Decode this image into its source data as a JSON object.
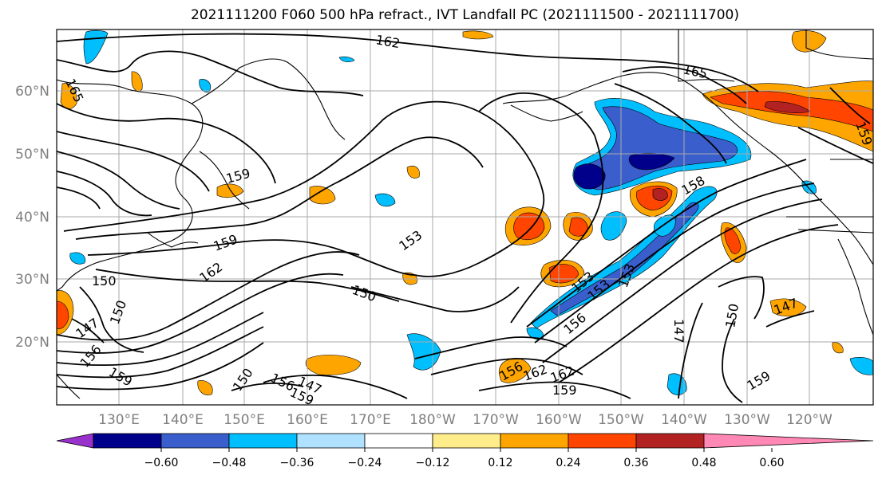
{
  "title": "2021111200 F060 500 hPa refract., IVT Landfall PC (2021111500 - 2021111700)",
  "lat_labels": [
    "60°N",
    "50°N",
    "40°N",
    "30°N",
    "20°N"
  ],
  "lon_labels": [
    "130°E",
    "140°E",
    "150°E",
    "160°E",
    "170°E",
    "180°W",
    "170°W",
    "160°W",
    "150°W",
    "140°W",
    "130°W",
    "120°W"
  ],
  "contour_labels": [
    {
      "text": "162"
    },
    {
      "text": "165"
    },
    {
      "text": "165"
    },
    {
      "text": "159"
    },
    {
      "text": "159"
    },
    {
      "text": "162"
    },
    {
      "text": "153"
    },
    {
      "text": "150"
    },
    {
      "text": "150"
    },
    {
      "text": "150"
    },
    {
      "text": "147"
    },
    {
      "text": "156"
    },
    {
      "text": "159"
    },
    {
      "text": "150"
    },
    {
      "text": "156"
    },
    {
      "text": "147"
    },
    {
      "text": "159"
    },
    {
      "text": "156"
    },
    {
      "text": "162"
    },
    {
      "text": "162"
    },
    {
      "text": "159"
    },
    {
      "text": "153"
    },
    {
      "text": "153"
    },
    {
      "text": "153"
    },
    {
      "text": "156"
    },
    {
      "text": "158"
    },
    {
      "text": "150"
    },
    {
      "text": "147"
    },
    {
      "text": "147"
    },
    {
      "text": "159"
    },
    {
      "text": "159"
    }
  ],
  "colorbar": {
    "ticks": [
      "−0.60",
      "−0.48",
      "−0.36",
      "−0.24",
      "−0.12",
      "0.12",
      "0.24",
      "0.36",
      "0.48",
      "0.60"
    ],
    "colors": [
      "#9932cc",
      "#00008b",
      "#3a5fcd",
      "#00bfff",
      "#b0e2ff",
      "#ffffff",
      "#ffec8b",
      "#ffa500",
      "#ff4500",
      "#b22222",
      "#ff88b4"
    ]
  }
}
